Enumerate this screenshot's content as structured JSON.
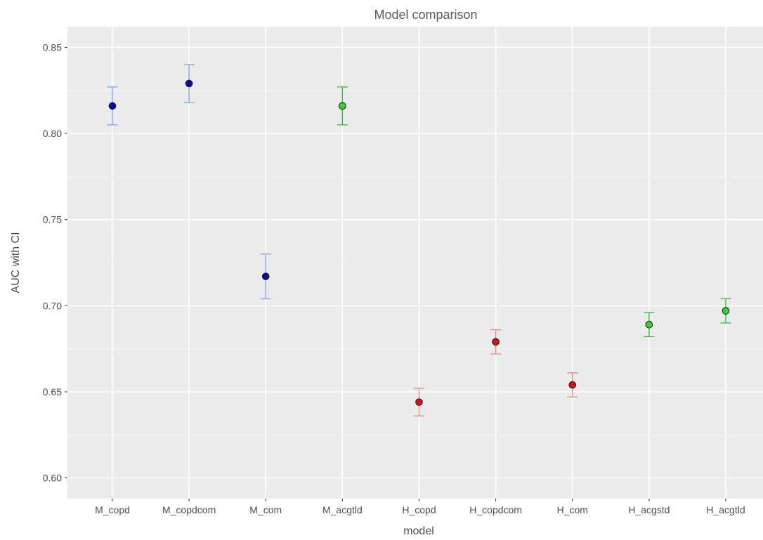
{
  "chart_data": {
    "type": "scatter",
    "title": "Model comparison",
    "xlabel": "model",
    "ylabel": "AUC with CI",
    "ylim": [
      0.588,
      0.862
    ],
    "yticks": [
      0.6,
      0.65,
      0.7,
      0.75,
      0.8,
      0.85
    ],
    "ytick_labels": [
      "0.60",
      "0.65",
      "0.70",
      "0.75",
      "0.80",
      "0.85"
    ],
    "grid": true,
    "legend": "none",
    "categories": [
      "M_copd",
      "M_copdcom",
      "M_com",
      "M_acgtld",
      "H_copd",
      "H_copdcom",
      "H_com",
      "H_acgstd",
      "H_acgtld"
    ],
    "points": [
      {
        "model": "M_copd",
        "auc": 0.816,
        "lower": 0.805,
        "upper": 0.827,
        "point_color": "#0a0aa8",
        "bar_color": "#7ba7df"
      },
      {
        "model": "M_copdcom",
        "auc": 0.829,
        "lower": 0.818,
        "upper": 0.84,
        "point_color": "#0a0aa8",
        "bar_color": "#7ba7df"
      },
      {
        "model": "M_com",
        "auc": 0.717,
        "lower": 0.704,
        "upper": 0.73,
        "point_color": "#0a0aa8",
        "bar_color": "#7ba7df"
      },
      {
        "model": "M_acgtld",
        "auc": 0.816,
        "lower": 0.805,
        "upper": 0.827,
        "point_color": "#33d433",
        "bar_color": "#33b833"
      },
      {
        "model": "H_copd",
        "auc": 0.644,
        "lower": 0.636,
        "upper": 0.652,
        "point_color": "#d41414",
        "bar_color": "#e08a7c"
      },
      {
        "model": "H_copdcom",
        "auc": 0.679,
        "lower": 0.672,
        "upper": 0.686,
        "point_color": "#d41414",
        "bar_color": "#e08a7c"
      },
      {
        "model": "H_com",
        "auc": 0.654,
        "lower": 0.647,
        "upper": 0.661,
        "point_color": "#d41414",
        "bar_color": "#e08a7c"
      },
      {
        "model": "H_acgstd",
        "auc": 0.689,
        "lower": 0.682,
        "upper": 0.696,
        "point_color": "#33d433",
        "bar_color": "#33b833"
      },
      {
        "model": "H_acgtld",
        "auc": 0.697,
        "lower": 0.69,
        "upper": 0.704,
        "point_color": "#33d433",
        "bar_color": "#33b833"
      }
    ]
  }
}
